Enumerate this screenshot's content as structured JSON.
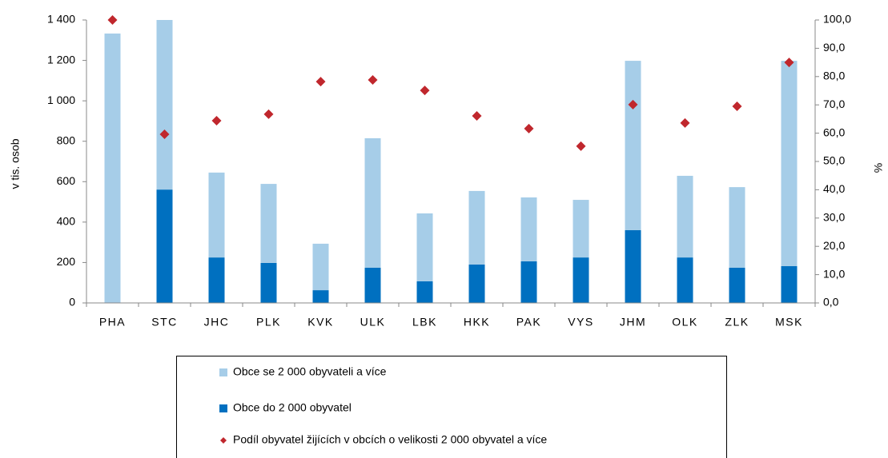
{
  "chart_data": {
    "type": "bar",
    "stacked": true,
    "y_label": "v tis. osob",
    "y2_label": "%",
    "categories": [
      "PHA",
      "STC",
      "JHC",
      "PLK",
      "KVK",
      "ULK",
      "LBK",
      "HKK",
      "PAK",
      "VYS",
      "JHM",
      "OLK",
      "ZLK",
      "MSK"
    ],
    "series": [
      {
        "name": "Obce se 2 000 obyvateli a více",
        "type": "bar",
        "color": "#a6cde8",
        "values": [
          1333,
          839,
          420,
          391,
          230,
          641,
          336,
          364,
          316,
          285,
          838,
          404,
          399,
          1016
        ]
      },
      {
        "name": "Obce do 2 000 obyvatel",
        "type": "bar",
        "color": "#0070c0",
        "values": [
          0,
          561,
          225,
          198,
          63,
          174,
          107,
          190,
          206,
          225,
          360,
          225,
          174,
          182
        ]
      },
      {
        "name": "Podíl obyvatel žijících v obcích o velikosti 2 000 obyvatel a více",
        "type": "scatter",
        "axis": "y2",
        "color": "#c0272d",
        "values": [
          100,
          59.6,
          64.4,
          66.7,
          78.2,
          78.8,
          75.1,
          66.1,
          61.6,
          55.4,
          70.1,
          63.6,
          69.5,
          85.0
        ]
      }
    ],
    "ylim": [
      0,
      1400
    ],
    "yticks": [
      0,
      200,
      400,
      600,
      800,
      {
        "value": 1000,
        "label": "1 000"
      },
      {
        "value": 1200,
        "label": "1 200"
      },
      {
        "value": 1400,
        "label": "1 400"
      }
    ],
    "y2lim": [
      0,
      100
    ],
    "y2ticks": [
      {
        "value": 0,
        "label": "0,0"
      },
      {
        "value": 10,
        "label": "10,0"
      },
      {
        "value": 20,
        "label": "20,0"
      },
      {
        "value": 30,
        "label": "30,0"
      },
      {
        "value": 40,
        "label": "40,0"
      },
      {
        "value": 50,
        "label": "50,0"
      },
      {
        "value": 60,
        "label": "60,0"
      },
      {
        "value": 70,
        "label": "70,0"
      },
      {
        "value": 80,
        "label": "80,0"
      },
      {
        "value": 90,
        "label": "90,0"
      },
      {
        "value": 100,
        "label": "100,0"
      }
    ],
    "grid": false,
    "legend": "bottom"
  }
}
